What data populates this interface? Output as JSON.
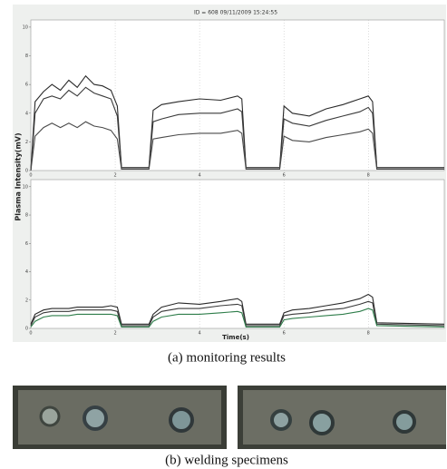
{
  "chart_data": [
    {
      "type": "line",
      "title": "ID = 608 09/11/2009 15:24:55",
      "y_label": "Plasma Intensity(mV)",
      "x": [
        0,
        0.1,
        0.3,
        0.5,
        0.7,
        0.9,
        1.1,
        1.3,
        1.5,
        1.7,
        1.9,
        2.05,
        2.15,
        2.8,
        2.9,
        3.1,
        3.5,
        4,
        4.5,
        4.9,
        5.0,
        5.1,
        5.9,
        6.0,
        6.2,
        6.6,
        7.0,
        7.4,
        7.8,
        8.0,
        8.1,
        8.2,
        9.8
      ],
      "series": [
        {
          "color": "#2a2a2a",
          "values": [
            0,
            4.8,
            5.5,
            6.0,
            5.6,
            6.3,
            5.8,
            6.6,
            6.0,
            5.9,
            5.6,
            4.5,
            0.2,
            0.2,
            4.2,
            4.6,
            4.8,
            5.0,
            4.9,
            5.2,
            5.0,
            0.2,
            0.2,
            4.5,
            4.0,
            3.8,
            4.3,
            4.6,
            5.0,
            5.2,
            4.8,
            0.2,
            0.2
          ]
        },
        {
          "color": "#3a3a3a",
          "values": [
            0,
            4.0,
            5.0,
            5.2,
            5.0,
            5.6,
            5.2,
            5.8,
            5.4,
            5.2,
            5.0,
            3.8,
            0.2,
            0.2,
            3.4,
            3.6,
            3.9,
            4.0,
            4.0,
            4.3,
            4.1,
            0.2,
            0.2,
            3.6,
            3.3,
            3.1,
            3.5,
            3.8,
            4.1,
            4.4,
            4.0,
            0.2,
            0.2
          ]
        },
        {
          "color": "#4a4a4a",
          "values": [
            0,
            2.4,
            3.0,
            3.3,
            3.0,
            3.3,
            3.0,
            3.4,
            3.1,
            3.0,
            2.8,
            2.2,
            0.1,
            0.1,
            2.2,
            2.3,
            2.5,
            2.6,
            2.6,
            2.8,
            2.6,
            0.1,
            0.1,
            2.4,
            2.1,
            2.0,
            2.3,
            2.5,
            2.7,
            2.9,
            2.6,
            0.1,
            0.1
          ]
        }
      ],
      "xlim": [
        0,
        9.8
      ],
      "ylim": [
        0,
        10.5
      ],
      "xticks": [
        0,
        2,
        4,
        6,
        8
      ],
      "yticks": [
        0,
        2,
        4,
        6,
        8,
        10
      ],
      "grid": true
    },
    {
      "type": "line",
      "x_label": "Time(s)",
      "x": [
        0,
        0.1,
        0.3,
        0.5,
        0.7,
        0.9,
        1.1,
        1.3,
        1.5,
        1.7,
        1.9,
        2.05,
        2.15,
        2.8,
        2.9,
        3.1,
        3.5,
        4,
        4.5,
        4.9,
        5.0,
        5.1,
        5.9,
        6.0,
        6.2,
        6.6,
        7.0,
        7.4,
        7.8,
        8.0,
        8.1,
        8.2,
        9.8
      ],
      "series": [
        {
          "color": "#2a2a2a",
          "values": [
            0.3,
            1.0,
            1.3,
            1.4,
            1.4,
            1.4,
            1.5,
            1.5,
            1.5,
            1.5,
            1.6,
            1.5,
            0.3,
            0.3,
            1.0,
            1.5,
            1.8,
            1.7,
            1.9,
            2.1,
            1.9,
            0.3,
            0.3,
            1.1,
            1.3,
            1.4,
            1.6,
            1.8,
            2.1,
            2.4,
            2.2,
            0.4,
            0.3
          ]
        },
        {
          "color": "#3a3a3a",
          "values": [
            0.2,
            0.8,
            1.1,
            1.2,
            1.2,
            1.2,
            1.3,
            1.3,
            1.3,
            1.3,
            1.3,
            1.2,
            0.2,
            0.2,
            0.8,
            1.2,
            1.4,
            1.4,
            1.6,
            1.7,
            1.6,
            0.2,
            0.2,
            0.9,
            1.0,
            1.1,
            1.3,
            1.4,
            1.7,
            1.9,
            1.8,
            0.3,
            0.2
          ]
        },
        {
          "color": "#2e7d4a",
          "values": [
            0.1,
            0.5,
            0.8,
            0.9,
            0.9,
            0.9,
            1.0,
            1.0,
            1.0,
            1.0,
            1.0,
            0.9,
            0.1,
            0.1,
            0.5,
            0.8,
            1.0,
            1.0,
            1.1,
            1.2,
            1.1,
            0.1,
            0.1,
            0.6,
            0.7,
            0.8,
            0.9,
            1.0,
            1.2,
            1.4,
            1.3,
            0.2,
            0.1
          ]
        }
      ],
      "xlim": [
        0,
        9.8
      ],
      "ylim": [
        0,
        10.5
      ],
      "xticks": [
        0,
        2,
        4,
        6,
        8
      ],
      "yticks": [
        0,
        2,
        4,
        6,
        8,
        10
      ],
      "grid": true
    }
  ],
  "captions": {
    "a": "(a) monitoring results",
    "b": "(b) welding specimens"
  }
}
